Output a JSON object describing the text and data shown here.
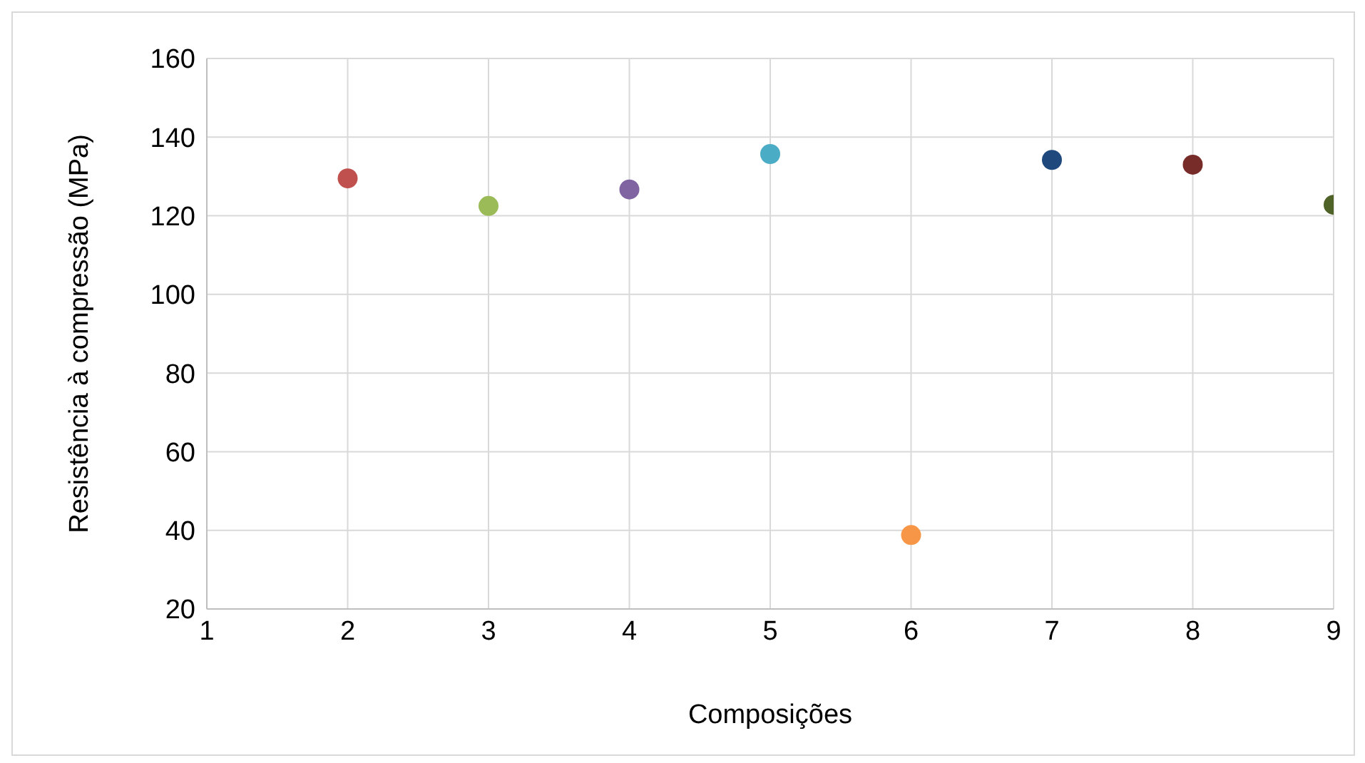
{
  "chart_data": {
    "type": "scatter",
    "xlabel": "Composições",
    "ylabel": "Resistência à compressão (MPa)",
    "x": [
      2,
      3,
      4,
      5,
      6,
      7,
      8,
      9
    ],
    "values": [
      129.5,
      122.5,
      126.7,
      135.7,
      38.8,
      134.2,
      133,
      122.8
    ],
    "colors": [
      "#c0504d",
      "#9bbb59",
      "#8064a2",
      "#4bacc6",
      "#f79646",
      "#1f497d",
      "#772c2a",
      "#4f6228"
    ],
    "xlim": [
      1,
      9
    ],
    "xticks": [
      1,
      2,
      3,
      4,
      5,
      6,
      7,
      8,
      9
    ],
    "ylim": [
      20,
      160
    ],
    "yticks": [
      20,
      40,
      60,
      80,
      100,
      120,
      140,
      160
    ],
    "grid": true,
    "marker": "circle"
  }
}
